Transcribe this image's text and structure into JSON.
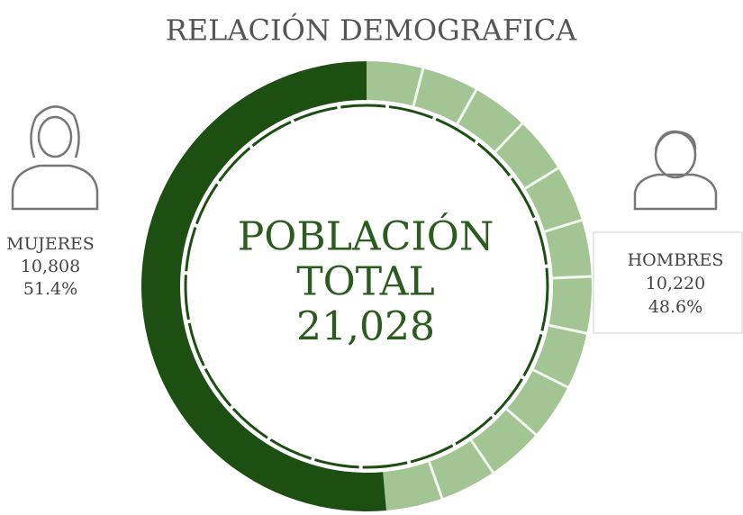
{
  "chart_data": {
    "type": "donut",
    "title": "RELACIÓN DEMOGRAFICA",
    "categories": [
      "MUJERES",
      "HOMBRES"
    ],
    "values": [
      51.4,
      48.6
    ],
    "value_labels": [
      "51.4%",
      "48.6%"
    ],
    "counts": [
      "10,808",
      "10,220"
    ],
    "colors": [
      "#1d4f13",
      "#a3c593"
    ],
    "center_title": [
      "POBLACIÓN",
      "TOTAL"
    ],
    "total": "21,028"
  }
}
